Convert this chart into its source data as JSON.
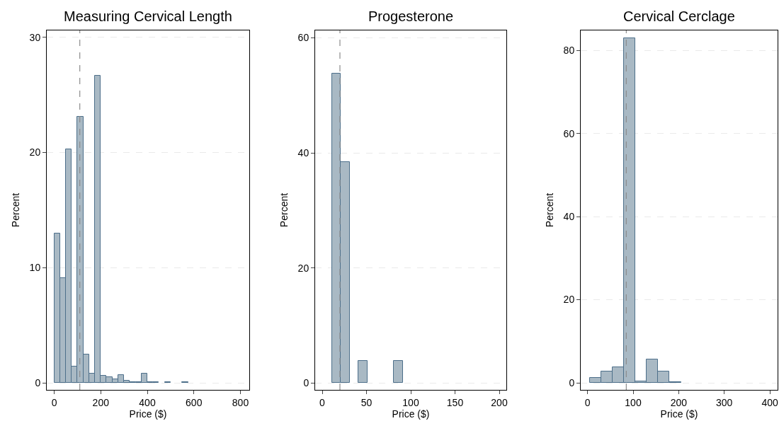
{
  "chart_data": [
    {
      "type": "histogram",
      "title": "Measuring Cervical Length",
      "xlabel": "Price ($)",
      "ylabel": "Percent",
      "color": "#a9b9c4",
      "bins": [
        0,
        25,
        50,
        75,
        100,
        125,
        150,
        175,
        200,
        225,
        250,
        275,
        300,
        325,
        350,
        375,
        400,
        425,
        450,
        475,
        500,
        525,
        550,
        575
      ],
      "values": [
        13.0,
        9.1,
        20.3,
        1.4,
        23.1,
        2.5,
        0.8,
        26.7,
        0.6,
        0.5,
        0.3,
        0.7,
        0.2,
        0.1,
        0.1,
        0.8,
        0.1,
        0.1,
        0,
        0.1,
        0,
        0,
        0.1
      ],
      "xlim": [
        -32,
        838
      ],
      "xticks": [
        0,
        200,
        400,
        600,
        800
      ],
      "ylim": [
        -0.6,
        30.6
      ],
      "yticks": [
        0,
        10,
        20,
        30
      ],
      "grid": "y",
      "ref_lines": [
        {
          "axis": "x",
          "value": 110,
          "color": "#8c8c8c",
          "line_style": "dashed"
        }
      ]
    },
    {
      "type": "histogram",
      "title": "Progesterone",
      "xlabel": "Price ($)",
      "ylabel": "Percent",
      "color": "#a9b9c4",
      "bins": [
        11,
        21,
        31,
        41,
        51,
        61,
        71,
        81,
        91
      ],
      "values": [
        53.8,
        38.4,
        0,
        3.8,
        0,
        0,
        0,
        3.8
      ],
      "xlim": [
        -8,
        208
      ],
      "xticks": [
        0,
        50,
        100,
        150,
        200
      ],
      "ylim": [
        -1.2,
        61.3
      ],
      "yticks": [
        0,
        20,
        40,
        60
      ],
      "grid": "y",
      "ref_lines": [
        {
          "axis": "x",
          "value": 20,
          "color": "#8c8c8c",
          "line_style": "dashed"
        }
      ]
    },
    {
      "type": "histogram",
      "title": "Cervical Cerclage",
      "xlabel": "Price ($)",
      "ylabel": "Percent",
      "color": "#a9b9c4",
      "bins": [
        5,
        30,
        55,
        80,
        105,
        130,
        155,
        180,
        205
      ],
      "values": [
        1.2,
        2.8,
        3.7,
        83.0,
        0.4,
        5.6,
        2.8,
        0.2
      ],
      "xlim": [
        -15,
        417
      ],
      "xticks": [
        0,
        100,
        200,
        300,
        400
      ],
      "ylim": [
        -1.7,
        84.8
      ],
      "yticks": [
        0,
        20,
        40,
        60,
        80
      ],
      "grid": "y",
      "ref_lines": [
        {
          "axis": "x",
          "value": 85,
          "color": "#8c8c8c",
          "line_style": "dashed"
        }
      ]
    }
  ]
}
